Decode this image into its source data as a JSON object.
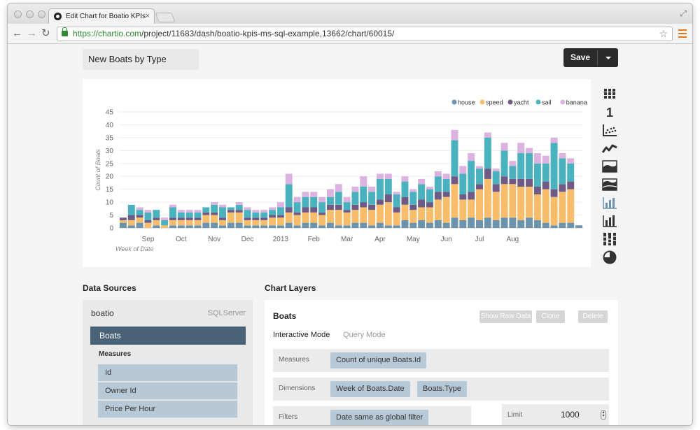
{
  "browser": {
    "tab_title": "Edit Chart for Boatio KPIs",
    "url_host": "https://chartio.com",
    "url_path": "/project/11683/dash/boatio-kpis-ms-sql-example,13662/chart/60015/"
  },
  "header": {
    "chart_name": "New Boats by Type",
    "save_label": "Save"
  },
  "chart_data": {
    "type": "bar",
    "stacked": true,
    "title": "",
    "xlabel": "Week of Date",
    "ylabel": "Count of Boats",
    "ylim": [
      0,
      45
    ],
    "yticks": [
      0,
      5,
      10,
      15,
      20,
      25,
      30,
      35,
      40,
      45
    ],
    "xtick_labels": [
      "Sep",
      "Oct",
      "Nov",
      "Dec",
      "2013",
      "Feb",
      "Mar",
      "Apr",
      "May",
      "Jun",
      "Jul",
      "Aug"
    ],
    "xtick_positions": [
      3,
      7,
      11,
      15,
      19,
      23,
      27,
      31,
      35,
      39,
      43,
      47
    ],
    "grid": true,
    "legend_position": "top-right",
    "series": [
      {
        "name": "house",
        "color": "#6b93ad",
        "values": [
          2,
          1,
          2,
          0,
          1,
          0,
          1,
          1,
          1,
          1,
          2,
          2,
          1,
          2,
          2,
          1,
          1,
          1,
          1,
          1,
          2,
          1,
          2,
          2,
          1,
          2,
          1,
          1,
          2,
          2,
          1,
          2,
          1,
          1,
          3,
          2,
          3,
          2,
          3,
          2,
          4,
          3,
          4,
          3,
          4,
          3,
          4,
          4,
          3,
          4,
          3,
          2,
          1,
          2,
          2,
          1
        ]
      },
      {
        "name": "speed",
        "color": "#f7bd6b",
        "values": [
          1,
          2,
          2,
          2,
          2,
          1,
          2,
          2,
          2,
          2,
          3,
          3,
          2,
          4,
          4,
          2,
          2,
          2,
          3,
          3,
          4,
          4,
          4,
          4,
          4,
          5,
          6,
          5,
          5,
          6,
          6,
          7,
          9,
          5,
          6,
          5,
          5,
          6,
          8,
          10,
          13,
          8,
          7,
          12,
          15,
          11,
          13,
          13,
          13,
          12,
          10,
          13,
          11,
          12,
          13,
          0
        ]
      },
      {
        "name": "yacht",
        "color": "#6f5a86",
        "values": [
          1,
          2,
          1,
          1,
          1,
          0,
          1,
          1,
          1,
          1,
          1,
          1,
          1,
          1,
          1,
          1,
          1,
          1,
          1,
          1,
          2,
          1,
          2,
          2,
          1,
          2,
          2,
          1,
          2,
          2,
          2,
          2,
          3,
          2,
          3,
          2,
          3,
          2,
          3,
          2,
          3,
          2,
          3,
          2,
          4,
          3,
          3,
          2,
          3,
          3,
          3,
          3,
          3,
          3,
          3,
          0
        ]
      },
      {
        "name": "sail",
        "color": "#4ab2bf",
        "values": [
          0,
          4,
          2,
          3,
          3,
          2,
          4,
          2,
          2,
          2,
          2,
          3,
          4,
          1,
          2,
          3,
          2,
          2,
          2,
          3,
          9,
          4,
          4,
          4,
          4,
          3,
          5,
          3,
          5,
          6,
          5,
          8,
          6,
          5,
          6,
          5,
          6,
          5,
          6,
          5,
          14,
          8,
          12,
          6,
          12,
          5,
          10,
          5,
          10,
          10,
          9,
          7,
          18,
          10,
          7,
          0
        ]
      },
      {
        "name": "banana",
        "color": "#dcb2e0",
        "values": [
          0,
          0,
          1,
          1,
          0,
          1,
          1,
          1,
          1,
          1,
          0,
          1,
          1,
          0,
          1,
          1,
          1,
          1,
          1,
          2,
          4,
          2,
          2,
          2,
          2,
          3,
          3,
          2,
          2,
          4,
          2,
          2,
          2,
          1,
          2,
          1,
          2,
          1,
          2,
          2,
          4,
          3,
          3,
          1,
          2,
          1,
          3,
          2,
          4,
          2,
          4,
          3,
          2,
          2,
          2,
          0
        ]
      }
    ]
  },
  "chart_types": [
    {
      "icon": "table-icon"
    },
    {
      "icon": "single-value-icon"
    },
    {
      "icon": "scatter-icon"
    },
    {
      "icon": "line-icon"
    },
    {
      "icon": "area-icon"
    },
    {
      "icon": "stacked-area-icon"
    },
    {
      "icon": "bar-icon"
    },
    {
      "icon": "stacked-bar-icon"
    },
    {
      "icon": "percent-bar-icon"
    },
    {
      "icon": "pie-icon"
    }
  ],
  "data_sources": {
    "section_title": "Data Sources",
    "source_name": "boatio",
    "source_type": "SQLServer",
    "table_name": "Boats",
    "measures_label": "Measures",
    "fields": [
      "Id",
      "Owner Id",
      "Price Per Hour"
    ]
  },
  "chart_layers": {
    "section_title": "Chart Layers",
    "layer_name": "Boats",
    "buttons": [
      "Show Raw Data",
      "Clone",
      "Delete"
    ],
    "modes": [
      "Interactive Mode",
      "Query Mode"
    ],
    "measures_label": "Measures",
    "measures": [
      "Count of unique Boats.Id"
    ],
    "dimensions_label": "Dimensions",
    "dimensions": [
      "Week of Boats.Date",
      "Boats.Type"
    ],
    "filters_label": "Filters",
    "filters": [
      "Date same as global filter"
    ],
    "limit_label": "Limit",
    "limit_value": "1000"
  }
}
